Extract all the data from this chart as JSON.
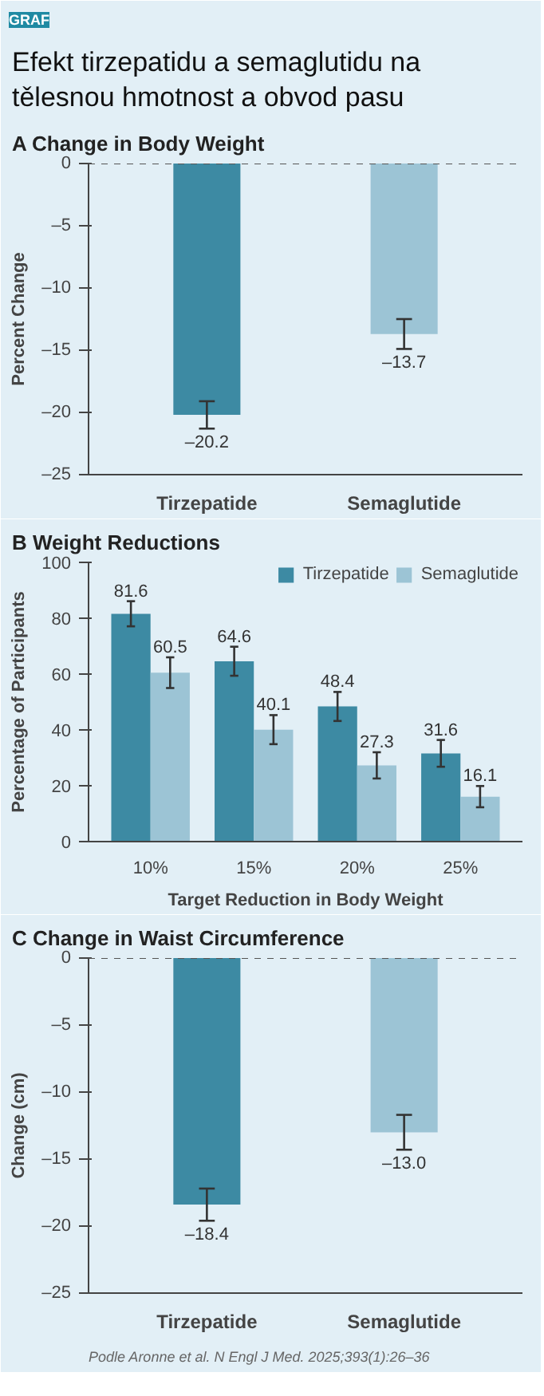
{
  "chart_data": [
    {
      "type": "bar",
      "title": "Efekt tirzepatidu a semaglutidu na tělesnou hmotnost a obvod pasu",
      "subtitle": "A  Change in Body Weight",
      "annotations": [
        "GRAF"
      ],
      "ylabel": "Percent Change",
      "categories": [
        "Tirzepatide",
        "Semaglutide"
      ],
      "values": [
        -20.2,
        -13.7
      ],
      "colors": [
        "#3d8aa3",
        "#9cc4d5"
      ],
      "errors": [
        1.1,
        1.2
      ],
      "value_labels": [
        "–20.2",
        "–13.7"
      ],
      "ylim": [
        -25,
        0
      ],
      "yticks": [
        0,
        {
          "value": -5,
          "label": "–5"
        },
        {
          "value": -10,
          "label": "–10"
        },
        {
          "value": -15,
          "label": "–15"
        },
        {
          "value": -20,
          "label": "–20"
        },
        {
          "value": -25,
          "label": "–25"
        }
      ],
      "ref_lines": [
        {
          "axis": "y",
          "value": 0,
          "label": null,
          "line_style": "dashed",
          "color": "#555555"
        }
      ],
      "grid": false,
      "legend": false
    },
    {
      "type": "bar",
      "title": "B  Weight Reductions",
      "xlabel": "Target Reduction in Body Weight",
      "ylabel": "Percentage of Participants",
      "categories": [
        "10%",
        "15%",
        "20%",
        "25%"
      ],
      "series": [
        {
          "name": "Tirzepatide",
          "color": "#3d8aa3",
          "values": [
            81.6,
            64.6,
            48.4,
            31.6
          ],
          "errors": [
            4.5,
            5.2,
            5.2,
            4.8
          ]
        },
        {
          "name": "Semaglutide",
          "color": "#9cc4d5",
          "values": [
            60.5,
            40.1,
            27.3,
            16.1
          ],
          "errors": [
            5.5,
            5.2,
            4.7,
            3.8
          ]
        }
      ],
      "ylim": [
        0,
        100
      ],
      "yticks": [
        0,
        20,
        40,
        60,
        80,
        100
      ],
      "data_labels": true,
      "grid": false,
      "legend": "top right"
    },
    {
      "type": "bar",
      "title": "C  Change in Waist Circumference",
      "ylabel": "Change (cm)",
      "annotations": [
        "Podle Aronne et al. N Engl J Med. 2025;393(1):26–36"
      ],
      "categories": [
        "Tirzepatide",
        "Semaglutide"
      ],
      "values": [
        -18.4,
        -13.0
      ],
      "colors": [
        "#3d8aa3",
        "#9cc4d5"
      ],
      "errors": [
        1.2,
        1.3
      ],
      "value_labels": [
        "–18.4",
        "–13.0"
      ],
      "ylim": [
        -25,
        0
      ],
      "yticks": [
        0,
        {
          "value": -5,
          "label": "–5"
        },
        {
          "value": -10,
          "label": "–10"
        },
        {
          "value": -15,
          "label": "–15"
        },
        {
          "value": -20,
          "label": "–20"
        },
        {
          "value": -25,
          "label": "–25"
        }
      ],
      "ref_lines": [
        {
          "axis": "y",
          "value": 0,
          "label": null,
          "line_style": "dashed",
          "color": "#555555"
        }
      ],
      "grid": false,
      "legend": false
    }
  ]
}
